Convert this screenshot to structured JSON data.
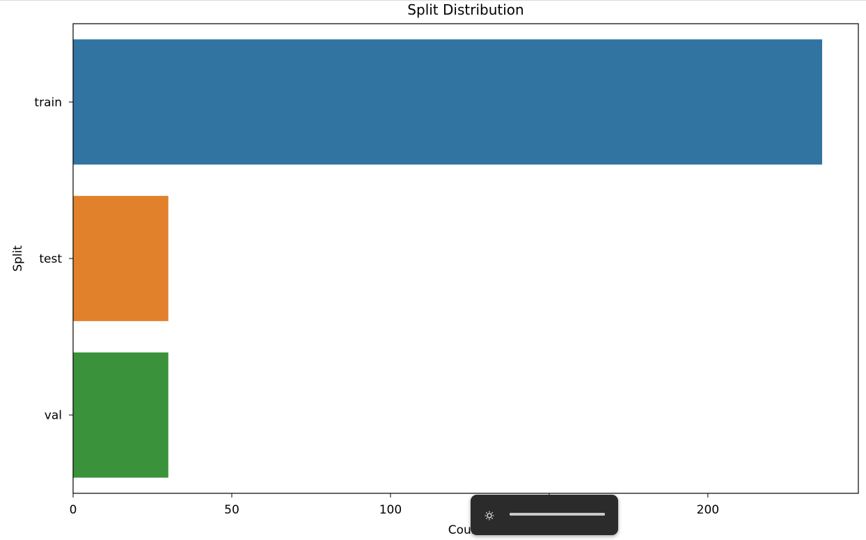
{
  "chart_data": {
    "type": "bar",
    "orientation": "horizontal",
    "title": "Split Distribution",
    "xlabel": "Count",
    "ylabel": "Split",
    "categories": [
      "train",
      "test",
      "val"
    ],
    "values": [
      236,
      30,
      30
    ],
    "colors": [
      "#3274a1",
      "#e1812c",
      "#3a923a"
    ],
    "xlim": [
      0,
      240
    ],
    "xticks": [
      0,
      50,
      100,
      150,
      200
    ],
    "grid": false,
    "legend": "none"
  },
  "overlay": {
    "icon": "brightness-icon",
    "level": 1.0
  }
}
